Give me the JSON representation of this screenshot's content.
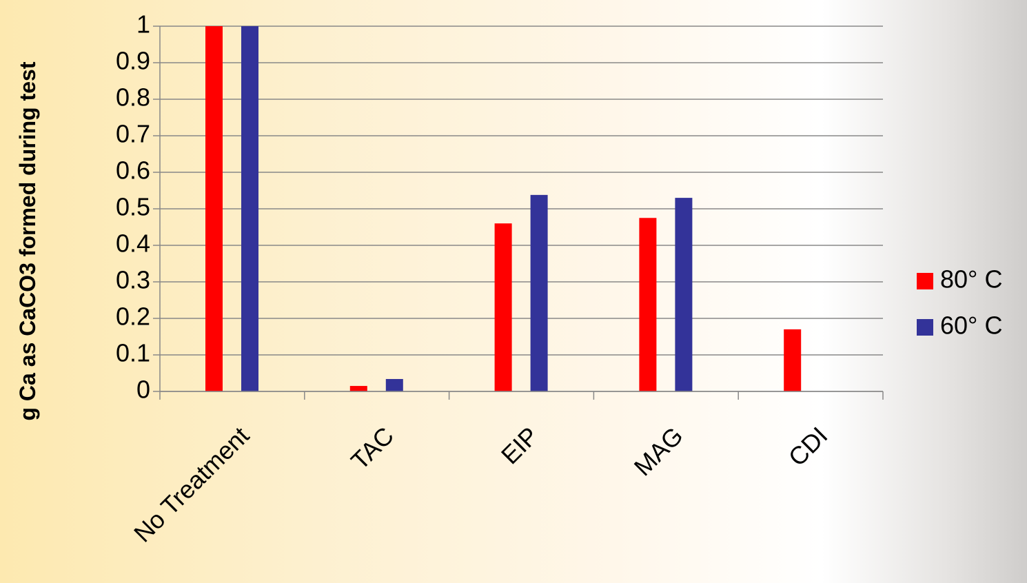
{
  "chart_data": {
    "type": "bar",
    "y_label": "g Ca as CaCO3 formed during test",
    "categories": [
      "No Treatment",
      "TAC",
      "EIP",
      "MAG",
      "CDI"
    ],
    "series": [
      {
        "name": "80° C",
        "color": "#ff0000",
        "values": [
          1,
          0.015,
          0.46,
          0.475,
          0.17
        ]
      },
      {
        "name": "60° C",
        "color": "#333399",
        "values": [
          1,
          0.034,
          0.538,
          0.53,
          null
        ]
      }
    ],
    "ylim": [
      0,
      1
    ],
    "yticks": [
      0,
      0.1,
      0.2,
      0.3,
      0.4,
      0.5,
      0.6,
      0.7,
      0.8,
      0.9,
      1
    ],
    "grid": true,
    "legend": "right"
  }
}
